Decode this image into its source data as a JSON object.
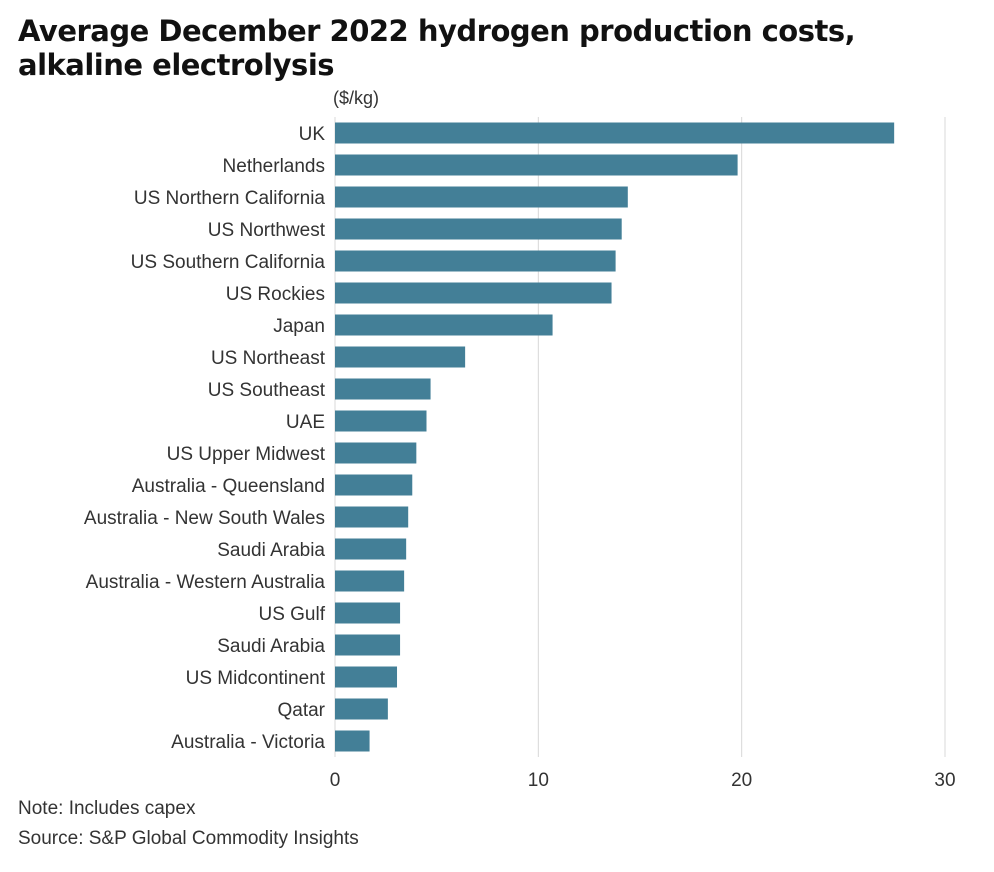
{
  "chart_data": {
    "type": "bar",
    "orientation": "horizontal",
    "title": "Average December 2022 hydrogen production costs, alkaline electrolysis",
    "title_lines": [
      "Average December 2022 hydrogen production costs,",
      "alkaline electrolysis"
    ],
    "unit_label": "($/kg)",
    "categories": [
      "UK",
      "Netherlands",
      "US Northern California",
      "US Northwest",
      "US Southern California",
      "US Rockies",
      "Japan",
      "US Northeast",
      "US Southeast",
      "UAE",
      "US Upper Midwest",
      "Australia - Queensland",
      "Australia - New South Wales",
      "Saudi Arabia",
      "Australia - Western Australia",
      "US Gulf",
      "Saudi Arabia",
      "US Midcontinent",
      "Qatar",
      "Australia - Victoria"
    ],
    "values": [
      27.5,
      19.8,
      14.4,
      14.1,
      13.8,
      13.6,
      10.7,
      6.4,
      4.7,
      4.5,
      4.0,
      3.8,
      3.6,
      3.5,
      3.4,
      3.2,
      3.2,
      3.05,
      2.6,
      1.7
    ],
    "xlim": [
      0,
      30
    ],
    "xticks": [
      "0",
      "10",
      "20",
      "30"
    ],
    "grid": true,
    "bar_color": "#437f97",
    "note": "Note: Includes capex",
    "source": "Source: S&P Global Commodity Insights"
  }
}
